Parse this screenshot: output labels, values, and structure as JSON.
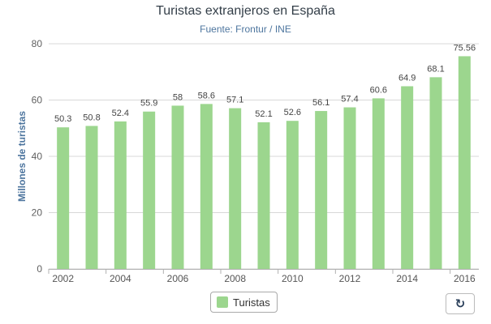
{
  "chart_data": {
    "type": "bar",
    "title": "Turistas extranjeros en España",
    "subtitle": "Fuente: Frontur / INE",
    "ylabel": "Millones de turistas",
    "xlabel": "",
    "ylim": [
      0,
      80
    ],
    "yticks": [
      0,
      20,
      40,
      60,
      80
    ],
    "categories": [
      2002,
      2003,
      2004,
      2005,
      2006,
      2007,
      2008,
      2009,
      2010,
      2011,
      2012,
      2013,
      2014,
      2015,
      2016
    ],
    "xtick_labels": [
      "2002",
      "2004",
      "2006",
      "2008",
      "2010",
      "2012",
      "2014",
      "2016"
    ],
    "series": [
      {
        "name": "Turistas",
        "color": "#9cd68e",
        "values": [
          50.3,
          50.8,
          52.4,
          55.9,
          58,
          58.6,
          57.1,
          52.1,
          52.6,
          56.1,
          57.4,
          60.6,
          64.9,
          68.1,
          75.56
        ]
      }
    ],
    "grid": true,
    "legend": "bottom-center"
  },
  "legend": {
    "label": "Turistas"
  },
  "controls": {
    "refresh_icon": "refresh-icon",
    "refresh_glyph": "↻"
  }
}
